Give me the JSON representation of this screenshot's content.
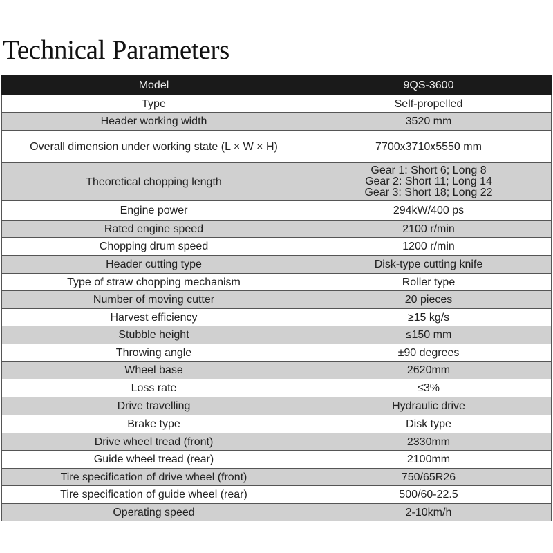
{
  "title": "Technical Parameters",
  "header": {
    "label": "Model",
    "value": "9QS-3600"
  },
  "rows": [
    {
      "label": "Type",
      "value": "Self-propelled"
    },
    {
      "label": "Header working width",
      "value": "3520 mm"
    },
    {
      "label": "Overall dimension under working state (L × W × H)",
      "value": "7700x3710x5550 mm"
    },
    {
      "label": "Theoretical chopping length",
      "lines": [
        "Gear 1: Short 6; Long 8",
        "Gear 2: Short 11; Long 14",
        "Gear 3: Short 18; Long 22"
      ]
    },
    {
      "label": "Engine power",
      "value": "294kW/400 ps"
    },
    {
      "label": "Rated engine speed",
      "value": "2100 r/min"
    },
    {
      "label": "Chopping drum speed",
      "value": "1200 r/min"
    },
    {
      "label": "Header cutting type",
      "value": "Disk-type cutting knife"
    },
    {
      "label": "Type of straw chopping mechanism",
      "value": "Roller type"
    },
    {
      "label": "Number of moving cutter",
      "value": "20 pieces"
    },
    {
      "label": "Harvest efficiency",
      "value": "≥15 kg/s"
    },
    {
      "label": "Stubble height",
      "value": "≤150 mm"
    },
    {
      "label": "Throwing angle",
      "value": "±90 degrees"
    },
    {
      "label": "Wheel base",
      "value": "2620mm"
    },
    {
      "label": "Loss rate",
      "value": "≤3%"
    },
    {
      "label": "Drive travelling",
      "value": "Hydraulic drive"
    },
    {
      "label": "Brake type",
      "value": "Disk type"
    },
    {
      "label": "Drive wheel tread (front)",
      "value": "2330mm"
    },
    {
      "label": "Guide wheel tread (rear)",
      "value": "2100mm"
    },
    {
      "label": "Tire specification of drive wheel (front)",
      "value": "750/65R26"
    },
    {
      "label": "Tire specification of guide wheel (rear)",
      "value": "500/60-22.5"
    },
    {
      "label": "Operating speed",
      "value": "2-10km/h"
    }
  ],
  "colors": {
    "header_bg": "#1a1a1a",
    "stripe": "#d0d0d0"
  }
}
